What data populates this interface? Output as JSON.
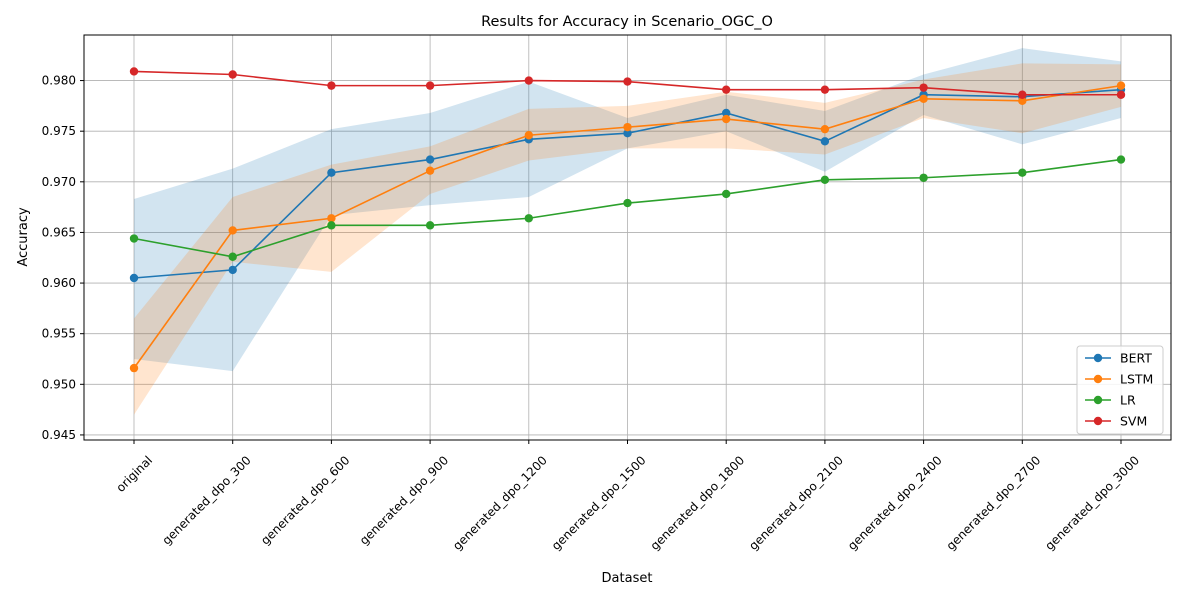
{
  "chart_data": {
    "type": "line",
    "title": "Results for Accuracy in Scenario_OGC_O",
    "xlabel": "Dataset",
    "ylabel": "Accuracy",
    "categories": [
      "original",
      "generated_dpo_300",
      "generated_dpo_600",
      "generated_dpo_900",
      "generated_dpo_1200",
      "generated_dpo_1500",
      "generated_dpo_1800",
      "generated_dpo_2100",
      "generated_dpo_2400",
      "generated_dpo_2700",
      "generated_dpo_3000"
    ],
    "ylim": [
      0.9445,
      0.9845
    ],
    "yticks": [
      0.945,
      0.95,
      0.955,
      0.96,
      0.965,
      0.97,
      0.975,
      0.98
    ],
    "grid": true,
    "legend_position": "lower-right",
    "series": [
      {
        "name": "BERT",
        "color": "#1f77b4",
        "values": [
          0.9605,
          0.9613,
          0.9709,
          0.9722,
          0.9742,
          0.9748,
          0.9768,
          0.974,
          0.9786,
          0.9784,
          0.9791
        ],
        "band_lower": [
          0.9525,
          0.9513,
          0.9667,
          0.9677,
          0.9685,
          0.9733,
          0.975,
          0.971,
          0.9766,
          0.9737,
          0.9763
        ],
        "band_upper": [
          0.9683,
          0.9713,
          0.9752,
          0.9768,
          0.9799,
          0.9763,
          0.9786,
          0.977,
          0.9806,
          0.9832,
          0.9819
        ]
      },
      {
        "name": "LSTM",
        "color": "#ff7f0e",
        "values": [
          0.9516,
          0.9652,
          0.9664,
          0.9711,
          0.9746,
          0.9754,
          0.9762,
          0.9752,
          0.9782,
          0.978,
          0.9795
        ],
        "band_lower": [
          0.947,
          0.9621,
          0.9611,
          0.9688,
          0.9721,
          0.9733,
          0.9733,
          0.9727,
          0.9763,
          0.9748,
          0.9774
        ],
        "band_upper": [
          0.9565,
          0.9685,
          0.9717,
          0.9735,
          0.9772,
          0.9775,
          0.9789,
          0.9778,
          0.9801,
          0.9817,
          0.9816
        ]
      },
      {
        "name": "LR",
        "color": "#2ca02c",
        "values": [
          0.9644,
          0.9626,
          0.9657,
          0.9657,
          0.9664,
          0.9679,
          0.9688,
          0.9702,
          0.9704,
          0.9709,
          0.9722
        ]
      },
      {
        "name": "SVM",
        "color": "#d62728",
        "values": [
          0.9809,
          0.9806,
          0.9795,
          0.9795,
          0.98,
          0.9799,
          0.9791,
          0.9791,
          0.9793,
          0.9786,
          0.9786
        ]
      }
    ]
  }
}
